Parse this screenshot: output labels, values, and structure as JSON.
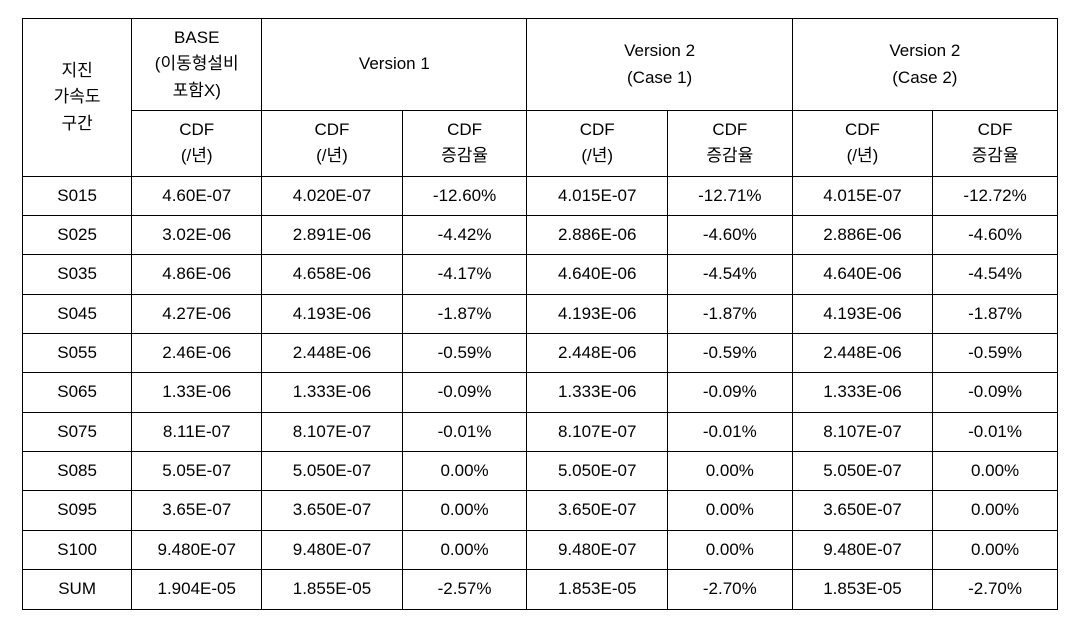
{
  "table": {
    "background_color": "#ffffff",
    "border_color": "#000000",
    "type": "table",
    "header": {
      "row_label": "지진\n가속도\n구간",
      "groups": [
        {
          "title": "BASE\n(이동형설비\n포함X)",
          "cols": [
            "CDF\n(/년)"
          ]
        },
        {
          "title": "Version 1",
          "cols": [
            "CDF\n(/년)",
            "CDF\n증감율"
          ]
        },
        {
          "title": "Version 2\n(Case 1)",
          "cols": [
            "CDF\n(/년)",
            "CDF\n증감율"
          ]
        },
        {
          "title": "Version 2\n(Case 2)",
          "cols": [
            "CDF\n(/년)",
            "CDF\n증감율"
          ]
        }
      ]
    },
    "rows": [
      {
        "label": "S015",
        "base": "4.60E-07",
        "v1_cdf": "4.020E-07",
        "v1_pct": "-12.60%",
        "v2c1_cdf": "4.015E-07",
        "v2c1_pct": "-12.71%",
        "v2c2_cdf": "4.015E-07",
        "v2c2_pct": "-12.72%"
      },
      {
        "label": "S025",
        "base": "3.02E-06",
        "v1_cdf": "2.891E-06",
        "v1_pct": "-4.42%",
        "v2c1_cdf": "2.886E-06",
        "v2c1_pct": "-4.60%",
        "v2c2_cdf": "2.886E-06",
        "v2c2_pct": "-4.60%"
      },
      {
        "label": "S035",
        "base": "4.86E-06",
        "v1_cdf": "4.658E-06",
        "v1_pct": "-4.17%",
        "v2c1_cdf": "4.640E-06",
        "v2c1_pct": "-4.54%",
        "v2c2_cdf": "4.640E-06",
        "v2c2_pct": "-4.54%"
      },
      {
        "label": "S045",
        "base": "4.27E-06",
        "v1_cdf": "4.193E-06",
        "v1_pct": "-1.87%",
        "v2c1_cdf": "4.193E-06",
        "v2c1_pct": "-1.87%",
        "v2c2_cdf": "4.193E-06",
        "v2c2_pct": "-1.87%"
      },
      {
        "label": "S055",
        "base": "2.46E-06",
        "v1_cdf": "2.448E-06",
        "v1_pct": "-0.59%",
        "v2c1_cdf": "2.448E-06",
        "v2c1_pct": "-0.59%",
        "v2c2_cdf": "2.448E-06",
        "v2c2_pct": "-0.59%"
      },
      {
        "label": "S065",
        "base": "1.33E-06",
        "v1_cdf": "1.333E-06",
        "v1_pct": "-0.09%",
        "v2c1_cdf": "1.333E-06",
        "v2c1_pct": "-0.09%",
        "v2c2_cdf": "1.333E-06",
        "v2c2_pct": "-0.09%"
      },
      {
        "label": "S075",
        "base": "8.11E-07",
        "v1_cdf": "8.107E-07",
        "v1_pct": "-0.01%",
        "v2c1_cdf": "8.107E-07",
        "v2c1_pct": "-0.01%",
        "v2c2_cdf": "8.107E-07",
        "v2c2_pct": "-0.01%"
      },
      {
        "label": "S085",
        "base": "5.05E-07",
        "v1_cdf": "5.050E-07",
        "v1_pct": "0.00%",
        "v2c1_cdf": "5.050E-07",
        "v2c1_pct": "0.00%",
        "v2c2_cdf": "5.050E-07",
        "v2c2_pct": "0.00%"
      },
      {
        "label": "S095",
        "base": "3.65E-07",
        "v1_cdf": "3.650E-07",
        "v1_pct": "0.00%",
        "v2c1_cdf": "3.650E-07",
        "v2c1_pct": "0.00%",
        "v2c2_cdf": "3.650E-07",
        "v2c2_pct": "0.00%"
      },
      {
        "label": "S100",
        "base": "9.480E-07",
        "v1_cdf": "9.480E-07",
        "v1_pct": "0.00%",
        "v2c1_cdf": "9.480E-07",
        "v2c1_pct": "0.00%",
        "v2c2_cdf": "9.480E-07",
        "v2c2_pct": "0.00%"
      },
      {
        "label": "SUM",
        "base": "1.904E-05",
        "v1_cdf": "1.855E-05",
        "v1_pct": "-2.57%",
        "v2c1_cdf": "1.853E-05",
        "v2c1_pct": "-2.70%",
        "v2c2_cdf": "1.853E-05",
        "v2c2_pct": "-2.70%"
      }
    ]
  }
}
